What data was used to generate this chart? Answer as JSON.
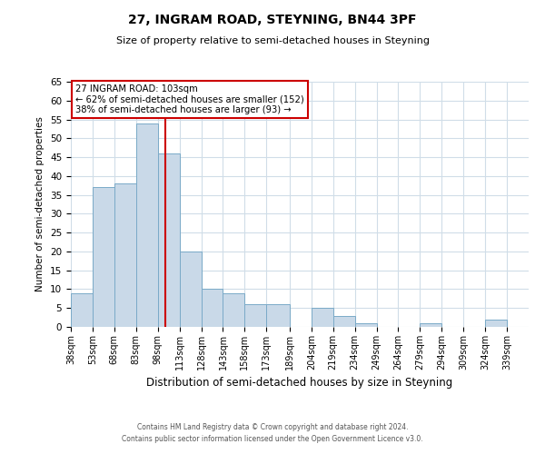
{
  "title": "27, INGRAM ROAD, STEYNING, BN44 3PF",
  "subtitle": "Size of property relative to semi-detached houses in Steyning",
  "xlabel": "Distribution of semi-detached houses by size in Steyning",
  "ylabel": "Number of semi-detached properties",
  "bin_labels": [
    "38sqm",
    "53sqm",
    "68sqm",
    "83sqm",
    "98sqm",
    "113sqm",
    "128sqm",
    "143sqm",
    "158sqm",
    "173sqm",
    "189sqm",
    "204sqm",
    "219sqm",
    "234sqm",
    "249sqm",
    "264sqm",
    "279sqm",
    "294sqm",
    "309sqm",
    "324sqm",
    "339sqm"
  ],
  "bin_edges": [
    38,
    53,
    68,
    83,
    98,
    113,
    128,
    143,
    158,
    173,
    189,
    204,
    219,
    234,
    249,
    264,
    279,
    294,
    309,
    324,
    339,
    354
  ],
  "bar_heights": [
    9,
    37,
    38,
    54,
    46,
    20,
    10,
    9,
    6,
    6,
    0,
    5,
    3,
    1,
    0,
    0,
    1,
    0,
    0,
    2,
    0
  ],
  "property_value": 103,
  "bar_color": "#c9d9e8",
  "bar_edge_color": "#7aaac8",
  "red_line_color": "#cc0000",
  "annotation_box_color": "#cc0000",
  "annotation_title": "27 INGRAM ROAD: 103sqm",
  "annotation_line1": "← 62% of semi-detached houses are smaller (152)",
  "annotation_line2": "38% of semi-detached houses are larger (93) →",
  "ylim": [
    0,
    65
  ],
  "yticks": [
    0,
    5,
    10,
    15,
    20,
    25,
    30,
    35,
    40,
    45,
    50,
    55,
    60,
    65
  ],
  "footer1": "Contains HM Land Registry data © Crown copyright and database right 2024.",
  "footer2": "Contains public sector information licensed under the Open Government Licence v3.0.",
  "bg_color": "#ffffff",
  "grid_color": "#d0dde8"
}
